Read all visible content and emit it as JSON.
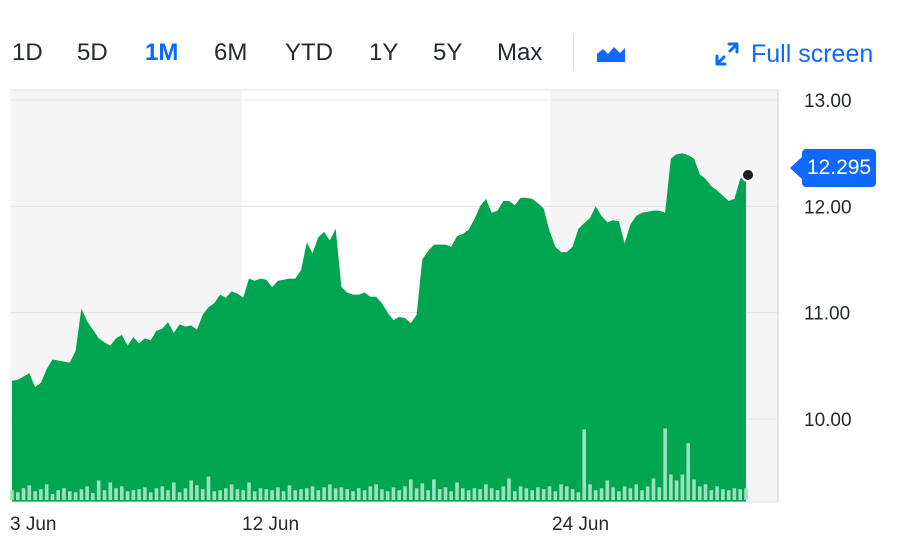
{
  "toolbar": {
    "ranges": [
      "1D",
      "5D",
      "1M",
      "6M",
      "YTD",
      "1Y",
      "5Y",
      "Max"
    ],
    "active_range": "1M",
    "fullscreen_label": "Full screen"
  },
  "price_tag": "12.295",
  "colors": {
    "area": "#00a552",
    "accent": "#0f69ff",
    "volume": "#9fe0bc",
    "shade": "#f5f5f6"
  },
  "chart_data": {
    "type": "area",
    "title": "",
    "xlabel": "",
    "ylabel": "",
    "ylim": [
      9.2,
      13.0
    ],
    "yticks": [
      10.0,
      11.0,
      12.0,
      13.0
    ],
    "ytick_labels": [
      "10.00",
      "11.00",
      "12.00",
      "13.00"
    ],
    "xtick_labels": [
      "3 Jun",
      "12 Jun",
      "24 Jun"
    ],
    "grid": true,
    "last_value": 12.295,
    "series": [
      {
        "values": [
          10.36,
          10.37,
          10.4,
          10.43,
          10.3,
          10.34,
          10.47,
          10.56,
          10.55,
          10.54,
          10.53,
          10.64,
          11.04,
          10.92,
          10.84,
          10.76,
          10.72,
          10.69,
          10.76,
          10.79,
          10.69,
          10.77,
          10.71,
          10.76,
          10.74,
          10.83,
          10.85,
          10.91,
          10.81,
          10.89,
          10.87,
          10.88,
          10.84,
          10.98,
          11.05,
          11.09,
          11.17,
          11.14,
          11.2,
          11.18,
          11.14,
          11.32,
          11.3,
          11.32,
          11.31,
          11.24,
          11.3,
          11.31,
          11.32,
          11.32,
          11.4,
          11.66,
          11.56,
          11.71,
          11.76,
          11.68,
          11.79,
          11.24,
          11.19,
          11.17,
          11.17,
          11.19,
          11.15,
          11.15,
          11.09,
          11.0,
          10.93,
          10.96,
          10.95,
          10.9,
          10.98,
          11.5,
          11.58,
          11.64,
          11.64,
          11.64,
          11.62,
          11.72,
          11.74,
          11.78,
          11.88,
          12.0,
          12.07,
          11.94,
          11.96,
          12.05,
          12.05,
          12.01,
          12.08,
          12.08,
          12.07,
          12.03,
          11.98,
          11.77,
          11.62,
          11.57,
          11.57,
          11.62,
          11.79,
          11.84,
          11.89,
          12.0,
          11.91,
          11.85,
          11.87,
          11.86,
          11.65,
          11.83,
          11.91,
          11.94,
          11.95,
          11.96,
          11.96,
          11.94,
          12.45,
          12.49,
          12.5,
          12.48,
          12.45,
          12.3,
          12.26,
          12.19,
          12.15,
          12.1,
          12.05,
          12.07,
          12.26,
          12.3
        ]
      },
      {
        "name": "Volume",
        "values": [
          0.1,
          0.08,
          0.12,
          0.15,
          0.09,
          0.11,
          0.16,
          0.06,
          0.1,
          0.12,
          0.09,
          0.08,
          0.11,
          0.14,
          0.07,
          0.2,
          0.1,
          0.18,
          0.12,
          0.14,
          0.09,
          0.1,
          0.11,
          0.13,
          0.08,
          0.12,
          0.14,
          0.1,
          0.18,
          0.08,
          0.12,
          0.2,
          0.15,
          0.11,
          0.24,
          0.09,
          0.1,
          0.12,
          0.16,
          0.11,
          0.1,
          0.18,
          0.09,
          0.12,
          0.11,
          0.1,
          0.13,
          0.09,
          0.15,
          0.1,
          0.11,
          0.12,
          0.14,
          0.1,
          0.13,
          0.16,
          0.12,
          0.13,
          0.11,
          0.09,
          0.12,
          0.1,
          0.14,
          0.16,
          0.11,
          0.09,
          0.13,
          0.1,
          0.14,
          0.21,
          0.12,
          0.17,
          0.1,
          0.21,
          0.11,
          0.13,
          0.09,
          0.18,
          0.12,
          0.1,
          0.12,
          0.11,
          0.16,
          0.12,
          0.1,
          0.14,
          0.22,
          0.09,
          0.14,
          0.12,
          0.1,
          0.13,
          0.11,
          0.14,
          0.09,
          0.16,
          0.14,
          0.11,
          0.08,
          0.72,
          0.16,
          0.1,
          0.12,
          0.2,
          0.13,
          0.09,
          0.14,
          0.12,
          0.16,
          0.1,
          0.14,
          0.22,
          0.13,
          0.73,
          0.26,
          0.2,
          0.26,
          0.58,
          0.21,
          0.14,
          0.16,
          0.1,
          0.14,
          0.11,
          0.1,
          0.12,
          0.11,
          0.12
        ]
      }
    ]
  }
}
